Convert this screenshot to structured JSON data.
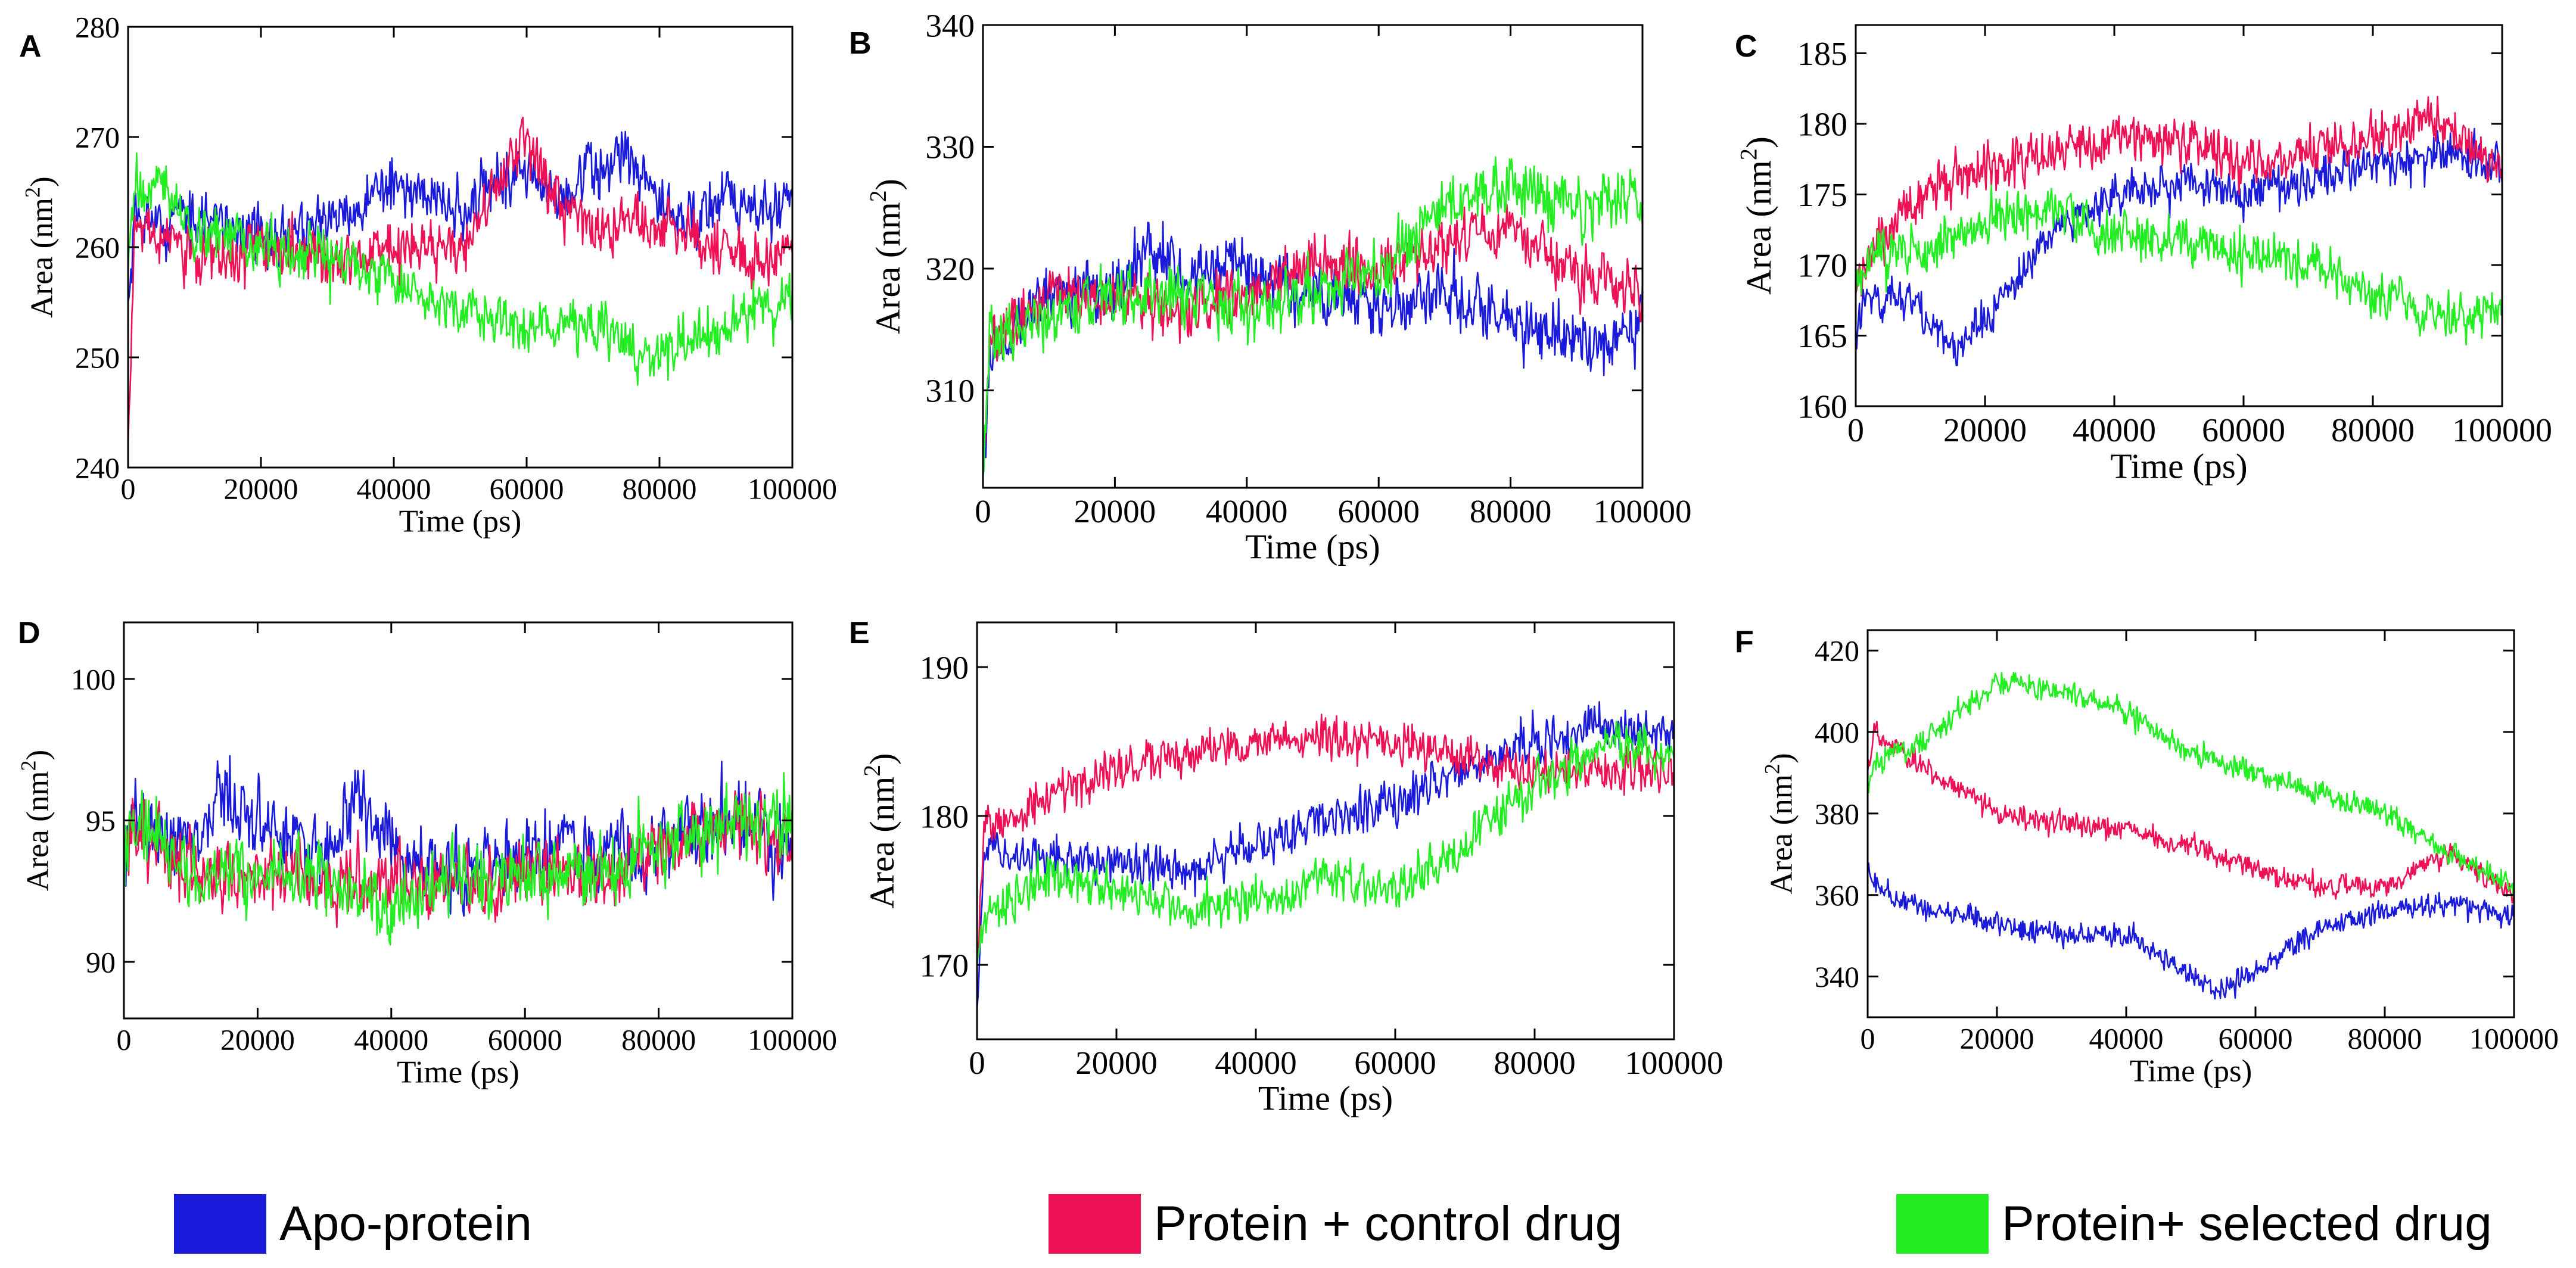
{
  "figure": {
    "legend": [
      {
        "label": "Apo-protein",
        "color": "#1a1adb"
      },
      {
        "label": "Protein + control drug",
        "color": "#ee1155"
      },
      {
        "label": "Protein+ selected drug",
        "color": "#22ee22"
      }
    ]
  },
  "chart_data": [
    {
      "panel": "A",
      "type": "line",
      "xlabel": "Time (ps)",
      "ylabel": "Area (nm",
      "ylabel_sup": "2",
      "ylabel_close": ")",
      "xlim": [
        0,
        100000
      ],
      "ylim": [
        240,
        280
      ],
      "xticks": [
        0,
        20000,
        40000,
        60000,
        80000,
        100000
      ],
      "yticks": [
        240,
        250,
        260,
        270,
        280
      ],
      "series": [
        {
          "name": "Apo-protein",
          "color": "#1a1adb",
          "noise": 3.2,
          "x": [
            0,
            1000,
            10000,
            20000,
            30000,
            40000,
            50000,
            55000,
            60000,
            65000,
            70000,
            75000,
            80000,
            85000,
            90000,
            95000,
            100000
          ],
          "y": [
            255,
            262,
            263,
            261,
            262,
            266,
            263,
            266,
            267,
            264,
            267,
            268,
            264,
            262,
            265,
            263,
            264
          ]
        },
        {
          "name": "Protein + control drug",
          "color": "#ee1155",
          "noise": 3.0,
          "x": [
            0,
            1000,
            10000,
            20000,
            30000,
            40000,
            50000,
            55000,
            60000,
            65000,
            70000,
            80000,
            90000,
            95000,
            100000
          ],
          "y": [
            242,
            262,
            259,
            260,
            259,
            260,
            260,
            265,
            270,
            263,
            262,
            262,
            260,
            258,
            260
          ]
        },
        {
          "name": "Protein+ selected drug",
          "color": "#22ee22",
          "noise": 3.0,
          "x": [
            0,
            1000,
            5000,
            10000,
            20000,
            30000,
            40000,
            50000,
            60000,
            70000,
            80000,
            90000,
            100000
          ],
          "y": [
            258,
            265,
            266,
            262,
            260,
            259,
            257,
            254,
            253,
            253,
            250,
            253,
            255
          ]
        }
      ]
    },
    {
      "panel": "B",
      "type": "line",
      "xlabel": "Time (ps)",
      "ylabel": "Area (nm",
      "ylabel_sup": "2",
      "ylabel_close": ")",
      "xlim": [
        0,
        100000
      ],
      "ylim": [
        302,
        340
      ],
      "xticks": [
        0,
        20000,
        40000,
        60000,
        80000,
        100000
      ],
      "yticks": [
        310,
        320,
        330,
        340
      ],
      "series": [
        {
          "name": "Apo-protein",
          "color": "#1a1adb",
          "noise": 3.0,
          "x": [
            0,
            1000,
            5000,
            10000,
            20000,
            25000,
            30000,
            40000,
            50000,
            60000,
            70000,
            80000,
            90000,
            100000
          ],
          "y": [
            303,
            312,
            316,
            318,
            318,
            322,
            320,
            320,
            318,
            317,
            318,
            316,
            314,
            316
          ]
        },
        {
          "name": "Protein + control drug",
          "color": "#ee1155",
          "noise": 2.8,
          "x": [
            0,
            1000,
            10000,
            20000,
            30000,
            40000,
            50000,
            60000,
            70000,
            80000,
            90000,
            100000
          ],
          "y": [
            303,
            314,
            318,
            318,
            316,
            318,
            321,
            320,
            322,
            323,
            320,
            318
          ]
        },
        {
          "name": "Protein+ selected drug",
          "color": "#22ee22",
          "noise": 3.0,
          "x": [
            0,
            1000,
            10000,
            20000,
            30000,
            40000,
            50000,
            60000,
            70000,
            80000,
            90000,
            100000
          ],
          "y": [
            303,
            314,
            316,
            318,
            318,
            317,
            318,
            320,
            325,
            327,
            325,
            326
          ]
        }
      ]
    },
    {
      "panel": "C",
      "type": "line",
      "xlabel": "Time (ps)",
      "ylabel": "Area (nm",
      "ylabel_sup": "2",
      "ylabel_close": ")",
      "xlim": [
        0,
        100000
      ],
      "ylim": [
        160,
        187
      ],
      "xticks": [
        0,
        20000,
        40000,
        60000,
        80000,
        100000
      ],
      "yticks": [
        160,
        165,
        170,
        175,
        180,
        185
      ],
      "series": [
        {
          "name": "Apo-protein",
          "color": "#1a1adb",
          "noise": 1.8,
          "x": [
            0,
            1000,
            10000,
            15000,
            20000,
            30000,
            40000,
            50000,
            60000,
            70000,
            80000,
            90000,
            100000
          ],
          "y": [
            164,
            168,
            167,
            164,
            166,
            172,
            175,
            176,
            175,
            176,
            177,
            178,
            177
          ]
        },
        {
          "name": "Protein + control drug",
          "color": "#ee1155",
          "noise": 2.0,
          "x": [
            0,
            1000,
            10000,
            20000,
            30000,
            40000,
            50000,
            60000,
            70000,
            80000,
            90000,
            100000
          ],
          "y": [
            168,
            170,
            175,
            177,
            178,
            179,
            179,
            177,
            178,
            179,
            180,
            177
          ]
        },
        {
          "name": "Protein+ selected drug",
          "color": "#22ee22",
          "noise": 2.0,
          "x": [
            0,
            1000,
            10000,
            20000,
            30000,
            40000,
            50000,
            60000,
            70000,
            80000,
            90000,
            100000
          ],
          "y": [
            168,
            170,
            171,
            173,
            174,
            172,
            172,
            171,
            170,
            168,
            166,
            167
          ]
        }
      ]
    },
    {
      "panel": "D",
      "type": "line",
      "xlabel": "Time (ps)",
      "ylabel": "Area (nm",
      "ylabel_sup": "2",
      "ylabel_close": ")",
      "xlim": [
        0,
        100000
      ],
      "ylim": [
        88,
        102
      ],
      "xticks": [
        0,
        20000,
        40000,
        60000,
        80000,
        100000
      ],
      "yticks": [
        90,
        95,
        100
      ],
      "series": [
        {
          "name": "Apo-protein",
          "color": "#1a1adb",
          "noise": 1.6,
          "x": [
            0,
            1000,
            10000,
            15000,
            20000,
            30000,
            35000,
            40000,
            50000,
            60000,
            70000,
            80000,
            90000,
            100000
          ],
          "y": [
            93,
            95,
            94,
            96,
            95,
            94,
            96,
            94,
            93,
            94,
            94,
            94,
            95,
            94
          ]
        },
        {
          "name": "Protein + control drug",
          "color": "#ee1155",
          "noise": 1.5,
          "x": [
            0,
            1000,
            10000,
            20000,
            30000,
            40000,
            50000,
            60000,
            70000,
            80000,
            90000,
            100000
          ],
          "y": [
            93,
            95,
            93,
            93,
            93,
            93,
            93,
            93,
            93,
            94,
            95,
            94
          ]
        },
        {
          "name": "Protein+ selected drug",
          "color": "#22ee22",
          "noise": 1.6,
          "x": [
            0,
            1000,
            10000,
            20000,
            30000,
            40000,
            50000,
            60000,
            70000,
            80000,
            90000,
            100000
          ],
          "y": [
            93,
            95,
            93,
            93,
            93,
            92,
            93,
            93,
            93,
            94,
            95,
            95
          ]
        }
      ]
    },
    {
      "panel": "E",
      "type": "line",
      "xlabel": "Time (ps)",
      "ylabel": "Area (nm",
      "ylabel_sup": "2",
      "ylabel_close": ")",
      "xlim": [
        0,
        100000
      ],
      "ylim": [
        165,
        193
      ],
      "xticks": [
        0,
        20000,
        40000,
        60000,
        80000,
        100000
      ],
      "yticks": [
        170,
        180,
        190
      ],
      "series": [
        {
          "name": "Apo-protein",
          "color": "#1a1adb",
          "noise": 1.8,
          "x": [
            0,
            1000,
            10000,
            20000,
            30000,
            40000,
            50000,
            60000,
            70000,
            80000,
            90000,
            100000
          ],
          "y": [
            167,
            178,
            177,
            177,
            176,
            178,
            180,
            181,
            183,
            185,
            186,
            185
          ]
        },
        {
          "name": "Protein + control drug",
          "color": "#ee1155",
          "noise": 1.8,
          "x": [
            0,
            1000,
            10000,
            20000,
            30000,
            40000,
            50000,
            60000,
            70000,
            80000,
            90000,
            100000
          ],
          "y": [
            170,
            179,
            181,
            183,
            184,
            185,
            185,
            185,
            184,
            183,
            183,
            183
          ]
        },
        {
          "name": "Protein+ selected drug",
          "color": "#22ee22",
          "noise": 1.8,
          "x": [
            0,
            1000,
            10000,
            20000,
            30000,
            40000,
            50000,
            60000,
            70000,
            80000,
            90000,
            100000
          ],
          "y": [
            170,
            173,
            176,
            175,
            174,
            174,
            176,
            175,
            178,
            182,
            185,
            184
          ]
        }
      ]
    },
    {
      "panel": "F",
      "type": "line",
      "xlabel": "Time (ps)",
      "ylabel": "Area (nm",
      "ylabel_sup": "2",
      "ylabel_close": ")",
      "xlim": [
        0,
        100000
      ],
      "ylim": [
        330,
        425
      ],
      "xticks": [
        0,
        20000,
        40000,
        60000,
        80000,
        100000
      ],
      "yticks": [
        340,
        360,
        380,
        400,
        420
      ],
      "series": [
        {
          "name": "Apo-protein",
          "color": "#1a1adb",
          "noise": 3.5,
          "x": [
            0,
            1000,
            10000,
            20000,
            30000,
            40000,
            50000,
            55000,
            60000,
            70000,
            80000,
            90000,
            100000
          ],
          "y": [
            368,
            362,
            356,
            353,
            350,
            350,
            340,
            336,
            342,
            352,
            356,
            358,
            354
          ]
        },
        {
          "name": "Protein + control drug",
          "color": "#ee1155",
          "noise": 3.5,
          "x": [
            0,
            1000,
            10000,
            20000,
            30000,
            40000,
            50000,
            60000,
            70000,
            80000,
            90000,
            100000
          ],
          "y": [
            390,
            400,
            390,
            380,
            378,
            376,
            372,
            366,
            362,
            362,
            370,
            360
          ]
        },
        {
          "name": "Protein+ selected drug",
          "color": "#22ee22",
          "noise": 3.5,
          "x": [
            0,
            1000,
            10000,
            20000,
            30000,
            40000,
            50000,
            60000,
            70000,
            80000,
            90000,
            100000
          ],
          "y": [
            385,
            392,
            400,
            412,
            410,
            405,
            395,
            390,
            385,
            380,
            370,
            362
          ]
        }
      ]
    }
  ]
}
